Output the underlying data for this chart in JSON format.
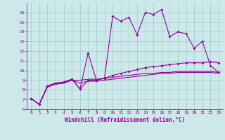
{
  "xlabel": "Windchill (Refroidissement éolien,°C)",
  "bg_color": "#cce8e8",
  "line_color": "#990099",
  "grid_color": "#99cccc",
  "xlim": [
    -0.5,
    23.5
  ],
  "ylim": [
    6,
    17
  ],
  "xticks": [
    0,
    1,
    2,
    3,
    4,
    5,
    6,
    7,
    8,
    9,
    10,
    11,
    12,
    13,
    14,
    15,
    16,
    17,
    18,
    19,
    20,
    21,
    22,
    23
  ],
  "yticks": [
    6,
    7,
    8,
    9,
    10,
    11,
    12,
    13,
    14,
    15,
    16
  ],
  "line1_x": [
    0,
    1,
    2,
    3,
    4,
    5,
    6,
    7,
    8,
    9,
    10,
    11,
    12,
    13,
    14,
    15,
    16,
    17,
    18,
    19,
    20,
    21,
    22,
    23
  ],
  "line1_y": [
    7.1,
    6.5,
    8.4,
    8.7,
    8.8,
    9.1,
    8.1,
    11.8,
    9.0,
    9.2,
    15.6,
    15.1,
    15.5,
    13.7,
    16.0,
    15.8,
    16.3,
    13.5,
    14.0,
    13.8,
    12.3,
    13.0,
    10.5,
    9.8
  ],
  "line2_x": [
    0,
    1,
    2,
    3,
    4,
    5,
    6,
    7,
    8,
    9,
    10,
    11,
    12,
    13,
    14,
    15,
    16,
    17,
    18,
    19,
    20,
    21,
    22,
    23
  ],
  "line2_y": [
    7.1,
    6.5,
    8.4,
    8.7,
    8.8,
    9.1,
    8.1,
    9.0,
    9.0,
    9.2,
    9.5,
    9.7,
    9.9,
    10.1,
    10.3,
    10.4,
    10.5,
    10.6,
    10.7,
    10.8,
    10.8,
    10.8,
    10.9,
    10.8
  ],
  "line3_x": [
    0,
    1,
    2,
    3,
    4,
    5,
    6,
    7,
    8,
    9,
    10,
    11,
    12,
    13,
    14,
    15,
    16,
    17,
    18,
    19,
    20,
    21,
    22,
    23
  ],
  "line3_y": [
    7.1,
    6.5,
    8.3,
    8.6,
    8.7,
    9.0,
    8.7,
    8.9,
    8.9,
    9.0,
    9.1,
    9.2,
    9.3,
    9.4,
    9.5,
    9.6,
    9.7,
    9.7,
    9.8,
    9.8,
    9.8,
    9.8,
    9.8,
    9.7
  ],
  "line4_x": [
    0,
    1,
    2,
    3,
    4,
    5,
    6,
    7,
    8,
    9,
    10,
    11,
    12,
    13,
    14,
    15,
    16,
    17,
    18,
    19,
    20,
    21,
    22,
    23
  ],
  "line4_y": [
    7.1,
    6.5,
    8.3,
    8.6,
    8.7,
    9.0,
    9.0,
    9.1,
    9.1,
    9.2,
    9.3,
    9.4,
    9.5,
    9.6,
    9.7,
    9.7,
    9.8,
    9.8,
    9.9,
    9.9,
    9.9,
    9.9,
    9.9,
    9.8
  ]
}
